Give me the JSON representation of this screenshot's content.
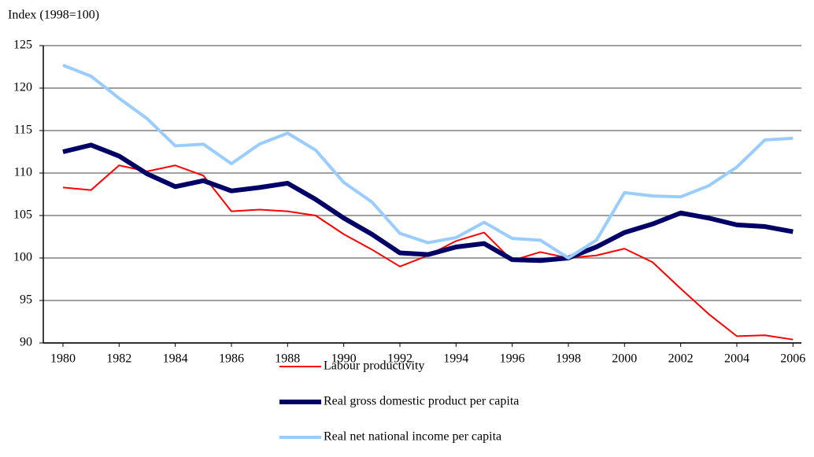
{
  "chart_data": {
    "type": "line",
    "y_axis_label": "Index (1998=100)",
    "x": [
      1980,
      1981,
      1982,
      1983,
      1984,
      1985,
      1986,
      1987,
      1988,
      1989,
      1990,
      1991,
      1992,
      1993,
      1994,
      1995,
      1996,
      1997,
      1998,
      1999,
      2000,
      2001,
      2002,
      2003,
      2004,
      2005,
      2006
    ],
    "xlim": [
      1979.3,
      2006.3
    ],
    "xticks": [
      1980,
      1982,
      1984,
      1986,
      1988,
      1990,
      1992,
      1994,
      1996,
      1998,
      2000,
      2002,
      2004,
      2006
    ],
    "ylim": [
      90,
      125
    ],
    "yticks": [
      90,
      95,
      100,
      105,
      110,
      115,
      120,
      125
    ],
    "grid": true,
    "legend": "bottom",
    "series": [
      {
        "name": "Labour productivity",
        "color": "#ff0000",
        "width": 2,
        "values": [
          108.3,
          108.0,
          110.9,
          110.2,
          110.9,
          109.7,
          105.5,
          105.7,
          105.5,
          105.0,
          102.8,
          101.0,
          99.0,
          100.3,
          102.0,
          103.0,
          99.7,
          100.7,
          100.0,
          100.3,
          101.1,
          99.5,
          96.4,
          93.4,
          90.8,
          90.9,
          90.4
        ]
      },
      {
        "name": "Real gross domestic product per capita",
        "color": "#000066",
        "width": 6,
        "values": [
          112.5,
          113.3,
          112.0,
          109.9,
          108.4,
          109.1,
          107.9,
          108.3,
          108.8,
          106.9,
          104.7,
          102.8,
          100.6,
          100.4,
          101.3,
          101.7,
          99.8,
          99.7,
          100.0,
          101.3,
          103.0,
          104.0,
          105.3,
          104.7,
          103.9,
          103.7,
          103.1
        ]
      },
      {
        "name": "Real net national income per capita",
        "color": "#99ccff",
        "width": 4,
        "values": [
          122.7,
          121.4,
          118.8,
          116.4,
          113.2,
          113.4,
          111.1,
          113.4,
          114.7,
          112.7,
          108.9,
          106.6,
          102.9,
          101.8,
          102.4,
          104.2,
          102.3,
          102.1,
          100.0,
          102.1,
          107.7,
          107.3,
          107.2,
          108.5,
          110.7,
          113.9,
          114.1
        ]
      }
    ]
  }
}
